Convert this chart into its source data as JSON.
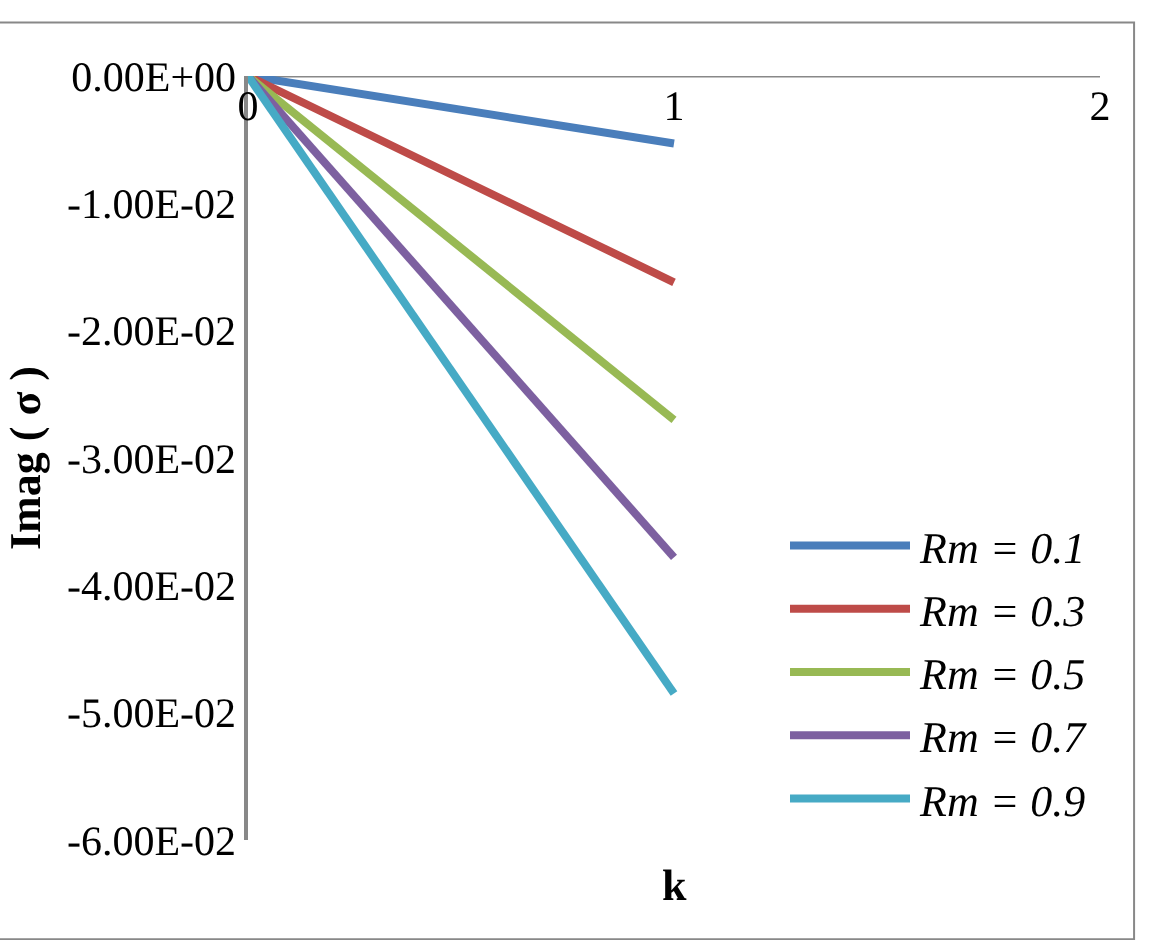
{
  "chart_data": {
    "type": "line",
    "xlabel": "k",
    "ylabel": "Imag ( σ )",
    "x": [
      0,
      1
    ],
    "series": [
      {
        "name": "Rm = 0.1",
        "color": "#4a7ebb",
        "values": [
          0,
          -0.0053
        ]
      },
      {
        "name": "Rm = 0.3",
        "color": "#be4b48",
        "values": [
          0,
          -0.0162
        ]
      },
      {
        "name": "Rm = 0.5",
        "color": "#98b954",
        "values": [
          0,
          -0.027
        ]
      },
      {
        "name": "Rm = 0.7",
        "color": "#7d60a0",
        "values": [
          0,
          -0.0378
        ]
      },
      {
        "name": "Rm = 0.9",
        "color": "#46aac5",
        "values": [
          0,
          -0.0485
        ]
      }
    ],
    "xlim": [
      0,
      2
    ],
    "xticks": [
      0,
      1,
      2
    ],
    "ylim": [
      -0.06,
      0
    ],
    "yticks": [
      {
        "value": 0,
        "label": "0.00E+00"
      },
      {
        "value": -0.01,
        "label": "-1.00E-02"
      },
      {
        "value": -0.02,
        "label": "-2.00E-02"
      },
      {
        "value": -0.03,
        "label": "-3.00E-02"
      },
      {
        "value": -0.04,
        "label": "-4.00E-02"
      },
      {
        "value": -0.05,
        "label": "-5.00E-02"
      },
      {
        "value": -0.06,
        "label": "-6.00E-02"
      }
    ],
    "grid": false,
    "legend": "bottom right",
    "marker": "none",
    "line_style": "solid"
  }
}
